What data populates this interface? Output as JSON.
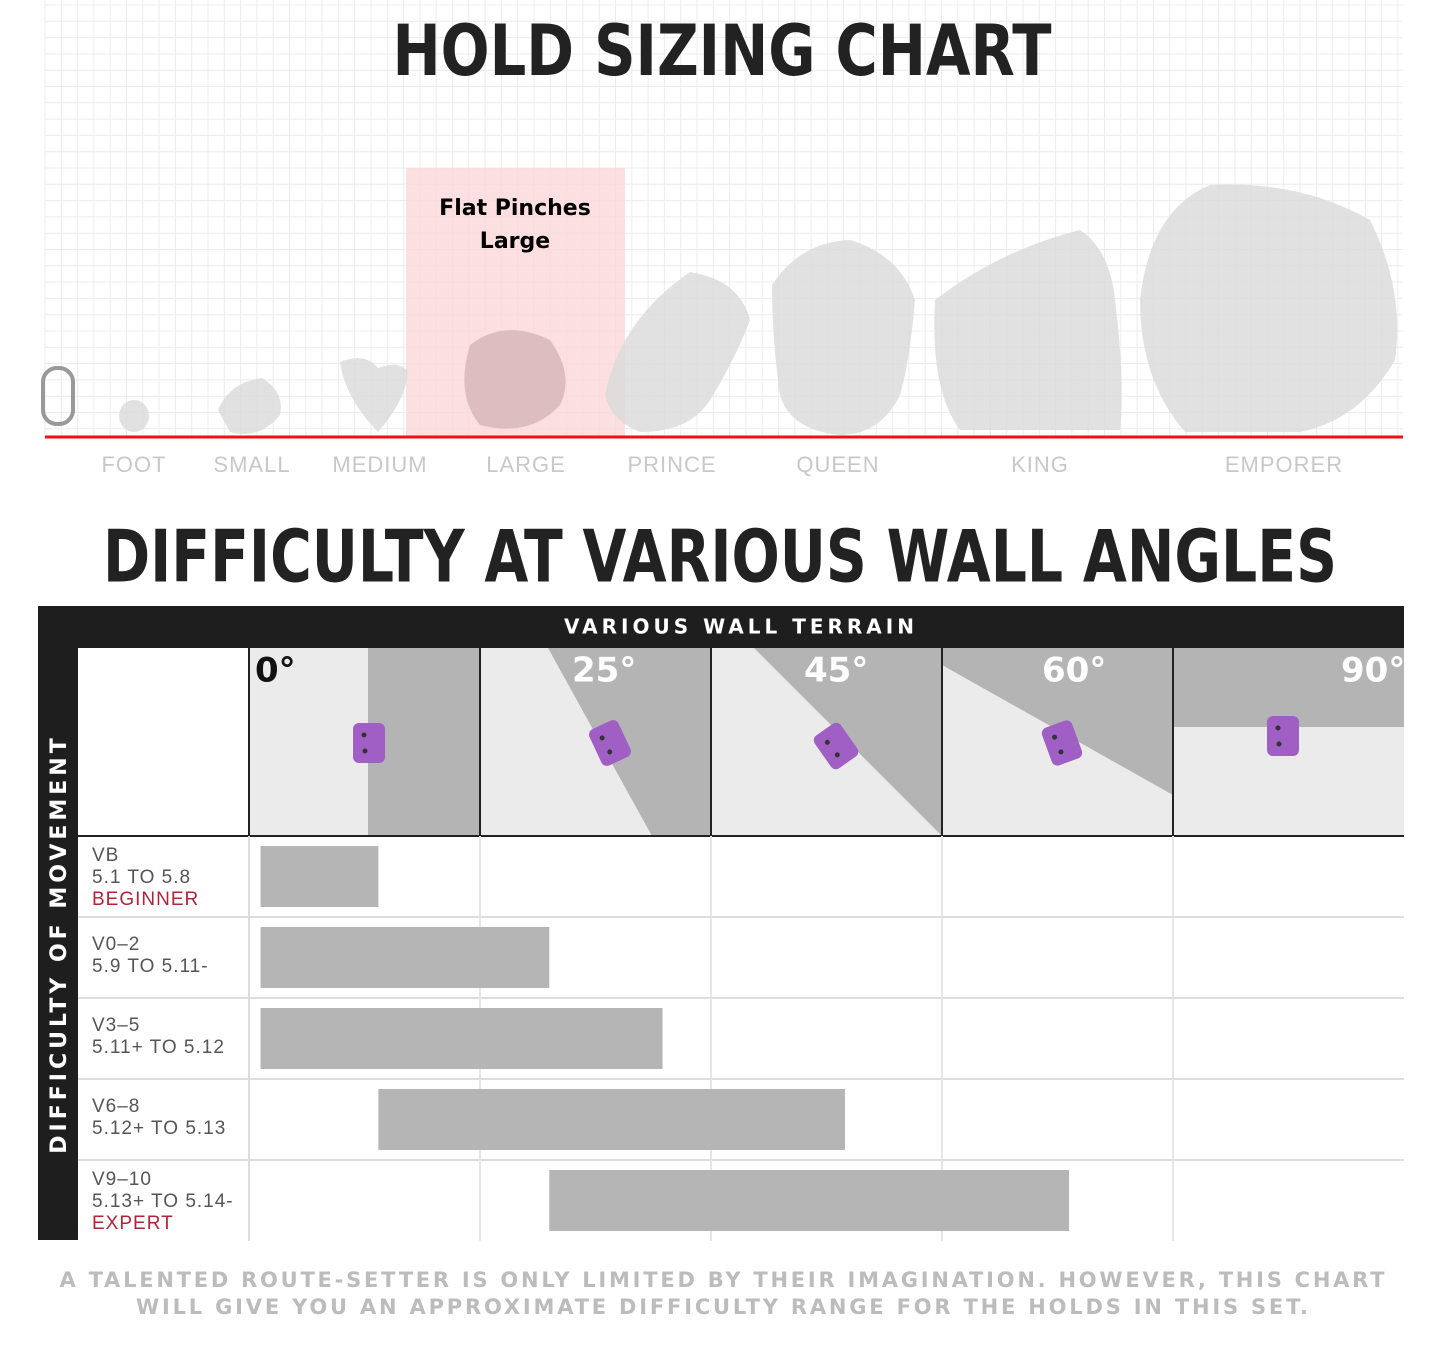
{
  "hold_chart": {
    "title": "HOLD SIZING CHART",
    "callout": [
      "Flat Pinches",
      "Large"
    ],
    "sizes": [
      "FOOT",
      "SMALL",
      "MEDIUM",
      "LARGE",
      "PRINCE",
      "QUEEN",
      "KING",
      "EMPORER"
    ]
  },
  "difficulty": {
    "title": "DIFFICULTY AT VARIOUS WALL ANGLES",
    "header": "VARIOUS WALL TERRAIN",
    "side_label": "DIFFICULTY OF MOVEMENT",
    "angles": [
      "0°",
      "25°",
      "45°",
      "60°",
      "90°"
    ],
    "rows": [
      {
        "lines": [
          "VB",
          "5.1 TO 5.8"
        ],
        "level": "BEGINNER",
        "range": [
          0.05,
          0.56
        ]
      },
      {
        "lines": [
          "V0–2",
          "5.9 TO 5.11-"
        ],
        "range": [
          0.05,
          1.3
        ]
      },
      {
        "lines": [
          "V3–5",
          "5.11+ TO 5.12"
        ],
        "range": [
          0.05,
          1.79
        ]
      },
      {
        "lines": [
          "V6–8",
          "5.12+ TO 5.13"
        ],
        "range": [
          0.56,
          2.58
        ]
      },
      {
        "lines": [
          "V9–10",
          "5.13+ TO 5.14-"
        ],
        "level": "EXPERT",
        "range": [
          1.3,
          3.55
        ]
      }
    ]
  },
  "footer": [
    "A TALENTED ROUTE-SETTER IS ONLY LIMITED BY THEIR IMAGINATION. HOWEVER, THIS CHART",
    "WILL GIVE YOU AN APPROXIMATE DIFFICULTY RANGE FOR THE HOLDS IN THIS SET."
  ]
}
